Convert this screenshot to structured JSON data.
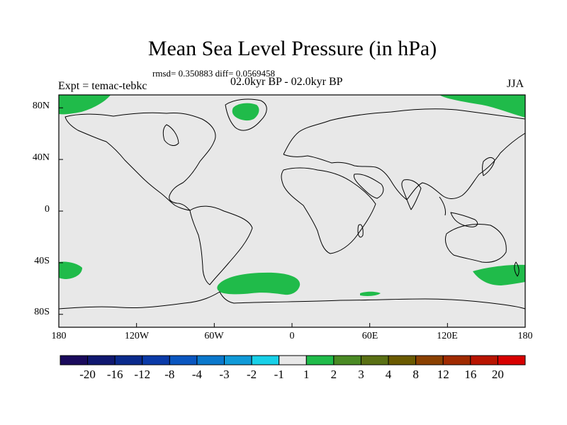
{
  "title": "Mean Sea Level Pressure (in hPa)",
  "stats": "rmsd= 0.350883 diff= 0.0569458",
  "period": "02.0kyr BP - 02.0kyr BP",
  "experiment": "Expt = temac-tebkc",
  "season": "JJA",
  "map": {
    "lon_range": [
      -180,
      180
    ],
    "lat_range": [
      -90,
      90
    ],
    "x_ticks": [
      "180",
      "120W",
      "60W",
      "0",
      "60E",
      "120E",
      "180"
    ],
    "y_ticks": [
      "80N",
      "40N",
      "0",
      "40S",
      "80S"
    ],
    "background_color": "#e8e8e8",
    "positive_color": "#20bb4a",
    "coastline_color": "#000000"
  },
  "colorbar": {
    "labels": [
      "-20",
      "-16",
      "-12",
      "-8",
      "-4",
      "-3",
      "-2",
      "-1",
      "1",
      "2",
      "3",
      "4",
      "8",
      "12",
      "16",
      "20"
    ],
    "colors": [
      "#1a0a5c",
      "#101870",
      "#0a2a8c",
      "#0a3aa8",
      "#0a56c0",
      "#0a78cc",
      "#109ad8",
      "#18d0e8",
      "#e8e8e8",
      "#20bb4a",
      "#4a8a24",
      "#5a7014",
      "#6a5a00",
      "#8a4000",
      "#a02a00",
      "#b81400",
      "#d80000"
    ]
  }
}
